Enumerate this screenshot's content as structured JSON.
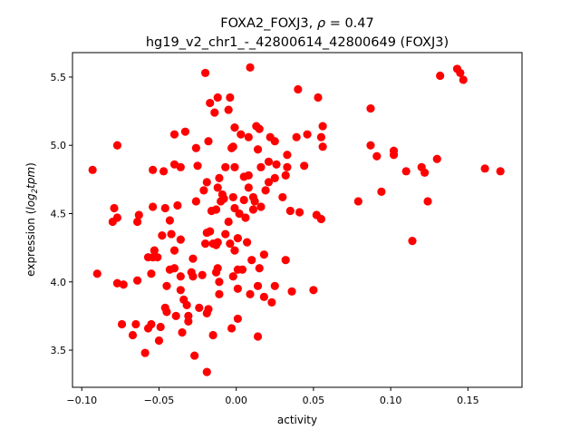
{
  "chart_data": {
    "type": "scatter",
    "title_line1_prefix": "FOXA2_FOXJ3, ",
    "title_rho": "ρ",
    "title_line1_suffix": " = 0.47",
    "title_line2": "hg19_v2_chr1_-_42800614_42800649 (FOXJ3)",
    "xlabel": "activity",
    "ylabel_prefix": "expression (",
    "ylabel_log": "log",
    "ylabel_sub": "2",
    "ylabel_tpm": "tpm",
    "ylabel_suffix": ")",
    "xlim": [
      -0.106,
      0.185
    ],
    "ylim": [
      3.228,
      5.679
    ],
    "xticks": [
      -0.1,
      -0.05,
      0.0,
      0.05,
      0.1,
      0.15
    ],
    "xtick_labels": [
      "−0.10",
      "−0.05",
      "0.00",
      "0.05",
      "0.10",
      "0.15"
    ],
    "yticks": [
      3.5,
      4.0,
      4.5,
      5.0,
      5.5
    ],
    "ytick_labels": [
      "3.5",
      "4.0",
      "4.5",
      "5.0",
      "5.5"
    ],
    "grid": false,
    "marker_color": "#ff0000",
    "points": [
      [
        -0.093,
        4.82
      ],
      [
        -0.09,
        4.06
      ],
      [
        -0.077,
        5.0
      ],
      [
        -0.079,
        4.54
      ],
      [
        -0.077,
        4.47
      ],
      [
        -0.08,
        4.44
      ],
      [
        -0.077,
        3.99
      ],
      [
        -0.073,
        3.98
      ],
      [
        -0.074,
        3.69
      ],
      [
        -0.065,
        3.69
      ],
      [
        -0.067,
        3.61
      ],
      [
        -0.063,
        4.49
      ],
      [
        -0.064,
        4.44
      ],
      [
        -0.064,
        4.01
      ],
      [
        -0.059,
        3.48
      ],
      [
        -0.057,
        3.66
      ],
      [
        -0.057,
        4.18
      ],
      [
        -0.054,
        4.55
      ],
      [
        -0.054,
        4.82
      ],
      [
        -0.047,
        4.81
      ],
      [
        -0.049,
        3.67
      ],
      [
        -0.05,
        3.57
      ],
      [
        -0.055,
        3.69
      ],
      [
        -0.055,
        4.06
      ],
      [
        -0.053,
        4.23
      ],
      [
        -0.051,
        4.18
      ],
      [
        -0.054,
        4.18
      ],
      [
        -0.048,
        4.34
      ],
      [
        -0.046,
        4.54
      ],
      [
        -0.046,
        3.81
      ],
      [
        -0.045,
        3.78
      ],
      [
        -0.045,
        3.97
      ],
      [
        -0.043,
        4.09
      ],
      [
        -0.04,
        4.86
      ],
      [
        -0.04,
        5.08
      ],
      [
        -0.04,
        4.1
      ],
      [
        -0.036,
        4.84
      ],
      [
        -0.038,
        4.56
      ],
      [
        -0.039,
        3.75
      ],
      [
        -0.036,
        3.94
      ],
      [
        -0.034,
        3.87
      ],
      [
        -0.033,
        5.1
      ],
      [
        -0.035,
        3.63
      ],
      [
        -0.032,
        3.83
      ],
      [
        -0.031,
        3.71
      ],
      [
        -0.031,
        3.75
      ],
      [
        -0.029,
        4.07
      ],
      [
        -0.028,
        4.17
      ],
      [
        -0.027,
        3.46
      ],
      [
        -0.026,
        4.98
      ],
      [
        -0.026,
        4.59
      ],
      [
        -0.025,
        4.85
      ],
      [
        -0.024,
        3.81
      ],
      [
        -0.022,
        4.05
      ],
      [
        -0.021,
        4.67
      ],
      [
        -0.019,
        4.73
      ],
      [
        -0.02,
        4.28
      ],
      [
        -0.02,
        5.53
      ],
      [
        -0.018,
        5.03
      ],
      [
        -0.019,
        3.34
      ],
      [
        -0.019,
        3.77
      ],
      [
        -0.018,
        3.8
      ],
      [
        -0.017,
        5.31
      ],
      [
        -0.014,
        5.24
      ],
      [
        -0.012,
        5.35
      ],
      [
        -0.015,
        3.61
      ],
      [
        -0.016,
        4.52
      ],
      [
        -0.013,
        4.53
      ],
      [
        -0.012,
        4.69
      ],
      [
        -0.011,
        4.76
      ],
      [
        -0.012,
        4.29
      ],
      [
        -0.011,
        3.91
      ],
      [
        -0.011,
        4.0
      ],
      [
        -0.01,
        4.59
      ],
      [
        -0.008,
        4.61
      ],
      [
        -0.007,
        4.84
      ],
      [
        -0.005,
        5.26
      ],
      [
        -0.004,
        5.35
      ],
      [
        -0.003,
        4.98
      ],
      [
        -0.003,
        3.66
      ],
      [
        -0.002,
        4.99
      ],
      [
        -0.002,
        4.62
      ],
      [
        -0.001,
        5.13
      ],
      [
        -0.001,
        4.84
      ],
      [
        0.001,
        4.09
      ],
      [
        0.001,
        3.95
      ],
      [
        0.001,
        3.73
      ],
      [
        0.001,
        4.32
      ],
      [
        0.002,
        4.5
      ],
      [
        0.003,
        5.08
      ],
      [
        0.004,
        4.09
      ],
      [
        0.005,
        4.77
      ],
      [
        0.006,
        4.47
      ],
      [
        0.008,
        5.06
      ],
      [
        0.009,
        5.57
      ],
      [
        0.008,
        4.78
      ],
      [
        0.008,
        4.69
      ],
      [
        0.009,
        3.91
      ],
      [
        0.01,
        4.16
      ],
      [
        0.011,
        4.62
      ],
      [
        0.012,
        4.59
      ],
      [
        0.013,
        5.14
      ],
      [
        0.014,
        3.97
      ],
      [
        0.014,
        3.6
      ],
      [
        0.015,
        5.12
      ],
      [
        0.014,
        4.97
      ],
      [
        0.015,
        4.1
      ],
      [
        0.016,
        4.84
      ],
      [
        0.016,
        4.55
      ],
      [
        0.018,
        4.2
      ],
      [
        0.018,
        3.89
      ],
      [
        0.019,
        4.67
      ],
      [
        0.021,
        4.73
      ],
      [
        0.021,
        4.88
      ],
      [
        0.022,
        5.06
      ],
      [
        0.023,
        3.85
      ],
      [
        0.025,
        4.76
      ],
      [
        0.025,
        5.03
      ],
      [
        0.025,
        3.97
      ],
      [
        0.026,
        4.86
      ],
      [
        0.03,
        4.62
      ],
      [
        0.032,
        4.78
      ],
      [
        0.032,
        4.16
      ],
      [
        0.033,
        4.93
      ],
      [
        0.033,
        4.84
      ],
      [
        0.035,
        4.52
      ],
      [
        0.036,
        3.93
      ],
      [
        0.039,
        5.06
      ],
      [
        0.04,
        5.41
      ],
      [
        0.041,
        4.51
      ],
      [
        0.044,
        4.85
      ],
      [
        0.046,
        5.08
      ],
      [
        0.05,
        3.94
      ],
      [
        0.052,
        4.49
      ],
      [
        0.053,
        5.35
      ],
      [
        0.055,
        4.46
      ],
      [
        0.056,
        5.14
      ],
      [
        0.056,
        4.99
      ],
      [
        0.055,
        5.06
      ],
      [
        0.079,
        4.59
      ],
      [
        0.087,
        5.27
      ],
      [
        0.087,
        5.0
      ],
      [
        0.091,
        4.92
      ],
      [
        0.094,
        4.66
      ],
      [
        0.102,
        4.96
      ],
      [
        0.102,
        4.93
      ],
      [
        0.11,
        4.81
      ],
      [
        0.114,
        4.3
      ],
      [
        0.12,
        4.84
      ],
      [
        0.122,
        4.8
      ],
      [
        0.124,
        4.59
      ],
      [
        0.13,
        4.9
      ],
      [
        0.132,
        5.51
      ],
      [
        0.143,
        5.56
      ],
      [
        0.145,
        5.53
      ],
      [
        0.147,
        5.48
      ],
      [
        0.161,
        4.83
      ],
      [
        0.171,
        4.81
      ],
      [
        -0.017,
        4.37
      ],
      [
        -0.019,
        4.36
      ],
      [
        -0.013,
        4.27
      ],
      [
        -0.004,
        4.28
      ],
      [
        -0.007,
        4.35
      ],
      [
        -0.001,
        4.23
      ],
      [
        -0.015,
        4.28
      ],
      [
        -0.036,
        4.04
      ],
      [
        -0.028,
        4.04
      ],
      [
        -0.005,
        4.44
      ],
      [
        -0.001,
        4.54
      ],
      [
        -0.009,
        4.64
      ],
      [
        0.005,
        4.6
      ],
      [
        0.007,
        4.29
      ],
      [
        0.011,
        4.53
      ],
      [
        -0.002,
        4.04
      ],
      [
        -0.012,
        4.1
      ],
      [
        -0.013,
        4.07
      ],
      [
        -0.043,
        4.45
      ],
      [
        -0.036,
        4.31
      ],
      [
        -0.04,
        4.23
      ],
      [
        -0.042,
        4.35
      ]
    ]
  }
}
